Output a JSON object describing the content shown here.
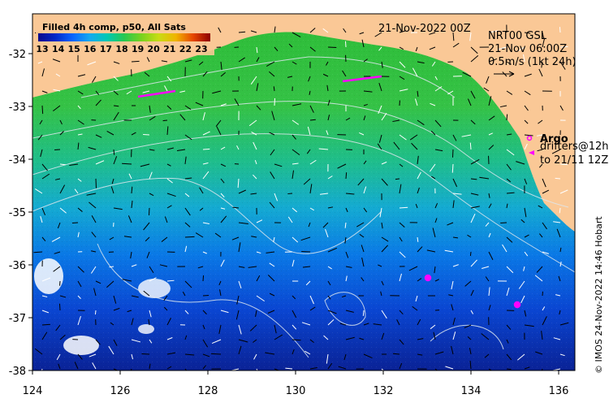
{
  "title": "Filled 4h comp, p50, All Sats",
  "date": "21-Nov-2022 00Z",
  "current_info": {
    "line1": "NRT00 GSL",
    "line2": "21-Nov 06:00Z",
    "scale": "0.5m/s (1kt 24h)"
  },
  "legend": {
    "argo": "Argo",
    "drifters_line1": "drifters@12h",
    "drifters_line2": "to 21/11 12Z"
  },
  "credit": "© IMOS 24-Nov-2022 14:46 Hobart",
  "colorbar": {
    "ticks": [
      "13",
      "14",
      "15",
      "16",
      "17",
      "18",
      "19",
      "20",
      "21",
      "22",
      "23"
    ],
    "colors": [
      "#0a0a8c",
      "#0028c8",
      "#0050f0",
      "#0a8cff",
      "#14b4f0",
      "#00c8a0",
      "#28c850",
      "#64d228",
      "#b4dc14",
      "#f0b400",
      "#e65000",
      "#c81400",
      "#8c0000"
    ]
  },
  "axes": {
    "x_ticks": [
      "124",
      "126",
      "128",
      "130",
      "132",
      "134",
      "136"
    ],
    "y_ticks": [
      "-32",
      "-33",
      "-34",
      "-35",
      "-36",
      "-37",
      "-38"
    ]
  },
  "colors": {
    "land": "#fac896",
    "warm": "#3cc83c",
    "mid": "#14aadc",
    "cool": "#0a46dc",
    "cold": "#0a1e96",
    "argo": "#ff00ff"
  }
}
